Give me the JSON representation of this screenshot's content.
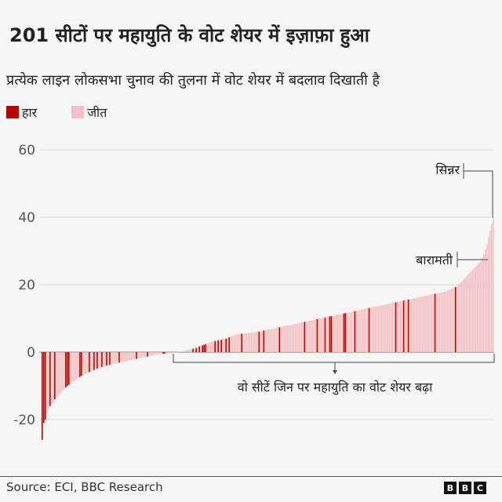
{
  "title": "201 सीटों पर महायुति के वोट शेयर में इज़ाफ़ा हुआ",
  "subtitle": "प्रत्येक लाइन लोकसभा चुनाव की तुलना में वोट शेयर में बदलाव दिखाती है",
  "legend": [
    {
      "label": "हार",
      "color": "#b80000"
    },
    {
      "label": "जीत",
      "color": "#f2c1c1"
    }
  ],
  "footer": {
    "source": "Source: ECI, BBC Research",
    "logo": [
      "B",
      "B",
      "C"
    ]
  },
  "chart_data": {
    "type": "bar",
    "title": "201 सीटों पर महायुति के वोट शेयर में इज़ाफ़ा हुआ",
    "ylim": [
      -27,
      65
    ],
    "yticks": [
      60,
      40,
      20,
      0,
      -20
    ],
    "grid": true,
    "legend_position": "top-left",
    "colors": {
      "win": "#f2c1c1",
      "loss": "#b80000"
    },
    "values": [
      -26,
      -21,
      -20,
      -18,
      -17,
      -16,
      -15.5,
      -15,
      -14,
      -13.5,
      -13,
      -12.5,
      -12,
      -11.5,
      -11,
      -10.5,
      -10,
      -9.7,
      -9.4,
      -9,
      -8.7,
      -8.4,
      -8,
      -7.7,
      -7.4,
      -7,
      -6.8,
      -6.6,
      -6.3,
      -6.1,
      -5.9,
      -5.7,
      -5.5,
      -5.3,
      -5.1,
      -4.9,
      -4.7,
      -4.6,
      -4.4,
      -4.3,
      -4.1,
      -4,
      -3.9,
      -3.8,
      -3.6,
      -3.5,
      -3.4,
      -3.3,
      -3.2,
      -3.1,
      -3,
      -2.9,
      -2.8,
      -2.7,
      -2.6,
      -2.5,
      -2.4,
      -2.3,
      -2.2,
      -2.1,
      -2,
      -1.9,
      -1.8,
      -1.7,
      -1.6,
      -1.5,
      -1.4,
      -1.3,
      -1.2,
      -1.1,
      -1,
      -0.9,
      -0.8,
      -0.7,
      -0.6,
      -0.6,
      -0.5,
      -0.5,
      -0.4,
      -0.4,
      -0.3,
      -0.3,
      -0.2,
      -0.2,
      -0.1,
      -0.1,
      -0.1,
      0.1,
      0.2,
      0.3,
      0.4,
      0.5,
      0.6,
      0.7,
      0.8,
      0.9,
      1.0,
      1.1,
      1.3,
      1.5,
      1.7,
      1.9,
      2.0,
      2.2,
      2.4,
      2.6,
      2.8,
      3.0,
      3.1,
      3.2,
      3.3,
      3.4,
      3.5,
      3.6,
      3.7,
      3.8,
      3.9,
      4.0,
      4.2,
      4.4,
      4.6,
      4.8,
      5.0,
      5.1,
      5.2,
      5.3,
      5.4,
      5.5,
      5.5,
      5.6,
      5.6,
      5.7,
      5.7,
      5.8,
      5.8,
      5.9,
      5.9,
      6.0,
      6.1,
      6.2,
      6.3,
      6.4,
      6.5,
      6.6,
      6.7,
      6.8,
      6.9,
      7.0,
      7.1,
      7.2,
      7.3,
      7.4,
      7.5,
      7.6,
      7.7,
      7.8,
      7.9,
      8.0,
      8.1,
      8.2,
      8.3,
      8.4,
      8.5,
      8.6,
      8.7,
      8.8,
      8.9,
      9.0,
      9.1,
      9.2,
      9.3,
      9.4,
      9.5,
      9.6,
      9.7,
      9.8,
      9.9,
      10.0,
      10.1,
      10.2,
      10.3,
      10.4,
      10.5,
      10.6,
      10.7,
      10.8,
      10.9,
      11.0,
      11.1,
      11.2,
      11.3,
      11.4,
      11.5,
      11.6,
      11.7,
      11.8,
      11.9,
      12.0,
      12.1,
      12.2,
      12.3,
      12.4,
      12.5,
      12.6,
      12.7,
      12.8,
      12.9,
      13.0,
      13.1,
      13.2,
      13.3,
      13.4,
      13.5,
      13.6,
      13.7,
      13.8,
      13.9,
      14.0,
      14.1,
      14.2,
      14.3,
      14.4,
      14.5,
      14.6,
      14.7,
      14.8,
      14.9,
      15.0,
      15.1,
      15.2,
      15.3,
      15.4,
      15.5,
      15.6,
      15.7,
      15.8,
      15.9,
      16.0,
      16.1,
      16.2,
      16.3,
      16.4,
      16.5,
      16.6,
      16.7,
      16.8,
      16.9,
      17.0,
      17.1,
      17.2,
      17.3,
      17.4,
      17.5,
      17.6,
      17.7,
      17.8,
      17.9,
      18.0,
      18.2,
      18.4,
      18.6,
      18.8,
      19.0,
      19.3,
      19.6,
      20.0,
      20.5,
      21.0,
      21.5,
      22.0,
      22.5,
      23.0,
      23.5,
      24.0,
      24.5,
      25.0,
      25.5,
      26.0,
      26.5,
      27.0,
      28.0,
      29.0,
      30.5,
      32.0,
      34.0,
      36.0,
      38.0,
      40.0
    ],
    "lost_indices": [
      0,
      1,
      2,
      5,
      8,
      15,
      16,
      17,
      24,
      25,
      30,
      33,
      35,
      38,
      41,
      43,
      49,
      60,
      67,
      77,
      78,
      96,
      98,
      100,
      102,
      103,
      104,
      110,
      112,
      114,
      117,
      119,
      127,
      138,
      141,
      151,
      167,
      175,
      180,
      183,
      184,
      192,
      193,
      199,
      208,
      225,
      230,
      233,
      250,
      263
    ],
    "annotations": [
      {
        "label": "सिन्नर",
        "index": 287
      },
      {
        "label": "बारामती",
        "index": 282
      },
      {
        "label": "वो सीटें जिन पर महायुति का वोट शेयर बढ़ा",
        "range": "positive"
      }
    ]
  }
}
